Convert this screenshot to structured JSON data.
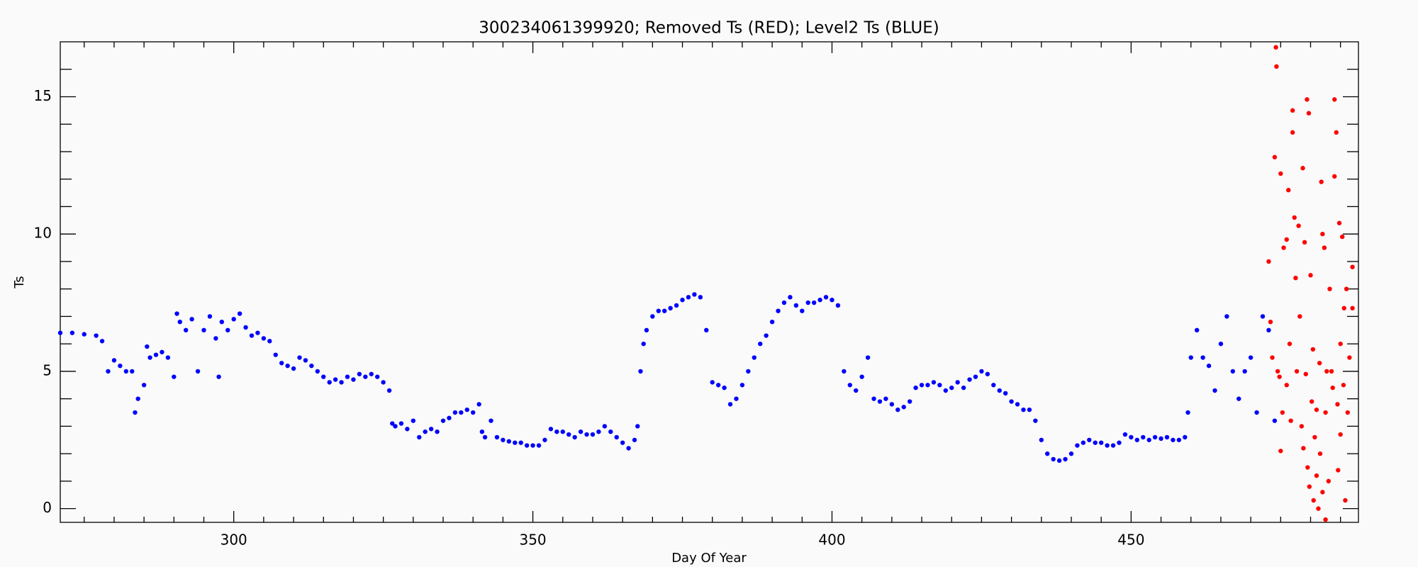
{
  "chart_data": {
    "type": "scatter",
    "title": "300234061399920; Removed Ts (RED); Level2 Ts (BLUE)",
    "x_label": "Day Of Year",
    "y_label": "Ts",
    "xlim": [
      271,
      488
    ],
    "ylim": [
      -0.5,
      17
    ],
    "xticks": [
      300,
      350,
      400,
      450
    ],
    "yticks": [
      0,
      5,
      10,
      15
    ],
    "xminorticks": [
      275,
      280,
      285,
      290,
      295,
      305,
      310,
      315,
      320,
      325,
      330,
      335,
      340,
      345,
      355,
      360,
      365,
      370,
      375,
      380,
      385,
      390,
      395,
      405,
      410,
      415,
      420,
      425,
      430,
      435,
      440,
      445,
      455,
      460,
      465,
      470,
      475,
      480,
      485
    ],
    "yminorticks": [
      1,
      2,
      3,
      4,
      6,
      7,
      8,
      9,
      11,
      12,
      13,
      14,
      16
    ],
    "series": [
      {
        "color": "#0000ff",
        "x": [
          271,
          273,
          275,
          277,
          278,
          279,
          280,
          281,
          282,
          283,
          283.5,
          284,
          285,
          285.5,
          286,
          287,
          288,
          289,
          290,
          290.5,
          291,
          292,
          293,
          294,
          295,
          296,
          297,
          297.5,
          298,
          299,
          300,
          301,
          302,
          303,
          304,
          305,
          306,
          307,
          308,
          309,
          310,
          311,
          312,
          313,
          314,
          315,
          316,
          317,
          318,
          319,
          320,
          321,
          322,
          323,
          324,
          325,
          326,
          326.5,
          327,
          328,
          329,
          330,
          331,
          332,
          333,
          334,
          335,
          336,
          337,
          338,
          339,
          340,
          341,
          341.5,
          342,
          343,
          344,
          345,
          346,
          347,
          348,
          349,
          350,
          351,
          352,
          353,
          354,
          355,
          356,
          357,
          358,
          359,
          360,
          361,
          362,
          363,
          364,
          365,
          366,
          367,
          367.5,
          368,
          368.5,
          369,
          370,
          371,
          372,
          373,
          374,
          375,
          376,
          377,
          378,
          379,
          380,
          381,
          382,
          383,
          384,
          385,
          386,
          387,
          388,
          389,
          390,
          391,
          392,
          393,
          394,
          395,
          396,
          397,
          398,
          399,
          400,
          401,
          402,
          403,
          404,
          405,
          406,
          407,
          408,
          409,
          410,
          411,
          412,
          413,
          414,
          415,
          416,
          417,
          418,
          419,
          420,
          421,
          422,
          423,
          424,
          425,
          426,
          427,
          428,
          429,
          430,
          431,
          432,
          433,
          434,
          435,
          436,
          437,
          438,
          439,
          440,
          441,
          442,
          443,
          444,
          445,
          446,
          447,
          448,
          449,
          450,
          451,
          452,
          453,
          454,
          455,
          456,
          457,
          458,
          459,
          459.5,
          460,
          461,
          462,
          463,
          464,
          465,
          466,
          467,
          468,
          469,
          470,
          471,
          472,
          473,
          474
        ],
        "values": [
          6.4,
          6.4,
          6.35,
          6.3,
          6.1,
          5.0,
          5.4,
          5.2,
          5.0,
          5.0,
          3.5,
          4.0,
          4.5,
          5.9,
          5.5,
          5.6,
          5.7,
          5.5,
          4.8,
          7.1,
          6.8,
          6.5,
          6.9,
          5.0,
          6.5,
          7.0,
          6.2,
          4.8,
          6.8,
          6.5,
          6.9,
          7.1,
          6.6,
          6.3,
          6.4,
          6.2,
          6.1,
          5.6,
          5.3,
          5.2,
          5.1,
          5.5,
          5.4,
          5.2,
          5.0,
          4.8,
          4.6,
          4.7,
          4.6,
          4.8,
          4.7,
          4.9,
          4.8,
          4.9,
          4.8,
          4.6,
          4.3,
          3.1,
          3.0,
          3.1,
          2.9,
          3.2,
          2.6,
          2.8,
          2.9,
          2.8,
          3.2,
          3.3,
          3.5,
          3.5,
          3.6,
          3.5,
          3.8,
          2.8,
          2.6,
          3.2,
          2.6,
          2.5,
          2.45,
          2.4,
          2.4,
          2.3,
          2.3,
          2.3,
          2.5,
          2.9,
          2.8,
          2.8,
          2.7,
          2.6,
          2.8,
          2.7,
          2.7,
          2.8,
          3.0,
          2.8,
          2.6,
          2.4,
          2.2,
          2.5,
          3.0,
          5.0,
          6.0,
          6.5,
          7.0,
          7.2,
          7.2,
          7.3,
          7.4,
          7.6,
          7.7,
          7.8,
          7.7,
          6.5,
          4.6,
          4.5,
          4.4,
          3.8,
          4.0,
          4.5,
          5.0,
          5.5,
          6.0,
          6.3,
          6.8,
          7.2,
          7.5,
          7.7,
          7.4,
          7.2,
          7.5,
          7.5,
          7.6,
          7.7,
          7.6,
          7.4,
          5.0,
          4.5,
          4.3,
          4.8,
          5.5,
          4.0,
          3.9,
          4.0,
          3.8,
          3.6,
          3.7,
          3.9,
          4.4,
          4.5,
          4.5,
          4.6,
          4.5,
          4.3,
          4.4,
          4.6,
          4.4,
          4.7,
          4.8,
          5.0,
          4.9,
          4.5,
          4.3,
          4.2,
          3.9,
          3.8,
          3.6,
          3.6,
          3.2,
          2.5,
          2.0,
          1.8,
          1.75,
          1.8,
          2.0,
          2.3,
          2.4,
          2.5,
          2.4,
          2.4,
          2.3,
          2.3,
          2.4,
          2.7,
          2.6,
          2.5,
          2.6,
          2.5,
          2.6,
          2.55,
          2.6,
          2.5,
          2.5,
          2.6,
          3.5,
          5.5,
          6.5,
          5.5,
          5.2,
          4.3,
          6.0,
          7.0,
          5.0,
          4.0,
          5.0,
          5.5,
          3.5,
          7.0,
          6.5,
          3.2
        ]
      },
      {
        "color": "#ff0000",
        "x": [
          473,
          473.3,
          473.6,
          474,
          474.2,
          474.3,
          474.5,
          474.8,
          475,
          475,
          475.3,
          475.5,
          476,
          476,
          476.3,
          476.5,
          476.7,
          477,
          477,
          477.3,
          477.5,
          477.7,
          478,
          478.2,
          478.5,
          478.7,
          478.8,
          479,
          479.2,
          479.4,
          479.5,
          479.7,
          479.8,
          480,
          480.2,
          480.4,
          480.5,
          480.7,
          481,
          481,
          481.3,
          481.5,
          481.6,
          481.8,
          482,
          482,
          482.3,
          482.5,
          482.5,
          482.7,
          483,
          483.2,
          483.5,
          483.7,
          484,
          484,
          484.3,
          484.5,
          484.6,
          484.8,
          485,
          485,
          485.3,
          485.5,
          485.6,
          485.8,
          486,
          486.2,
          486.5,
          487,
          487
        ],
        "values": [
          9.0,
          6.8,
          5.5,
          12.8,
          16.8,
          16.1,
          5.0,
          4.8,
          12.2,
          2.1,
          3.5,
          9.5,
          9.8,
          4.5,
          11.6,
          6.0,
          3.2,
          14.5,
          13.7,
          10.6,
          8.4,
          5.0,
          10.3,
          7.0,
          3.0,
          12.4,
          2.2,
          9.7,
          4.9,
          14.9,
          1.5,
          14.4,
          0.8,
          8.5,
          3.9,
          5.8,
          0.3,
          2.6,
          3.6,
          1.2,
          0.0,
          5.3,
          2.0,
          11.9,
          10.0,
          0.6,
          9.5,
          3.5,
          -0.4,
          5.0,
          1.0,
          8.0,
          5.0,
          4.4,
          14.9,
          12.1,
          13.7,
          3.8,
          1.4,
          10.4,
          6.0,
          2.7,
          9.9,
          4.5,
          7.3,
          0.3,
          8.0,
          3.5,
          5.5,
          8.8,
          7.3
        ]
      }
    ]
  }
}
